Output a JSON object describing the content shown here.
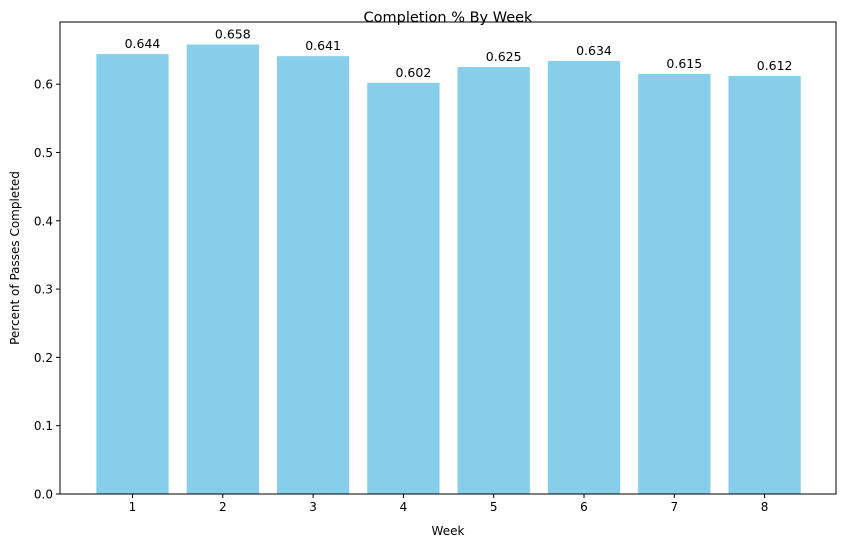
{
  "chart_data": {
    "type": "bar",
    "title": "Completion % By Week",
    "xlabel": "Week",
    "ylabel": "Percent of Passes Completed",
    "categories": [
      "1",
      "2",
      "3",
      "4",
      "5",
      "6",
      "7",
      "8"
    ],
    "values": [
      0.644,
      0.658,
      0.641,
      0.602,
      0.625,
      0.634,
      0.615,
      0.612
    ],
    "value_labels": [
      "0.644",
      "0.658",
      "0.641",
      "0.602",
      "0.625",
      "0.634",
      "0.615",
      "0.612"
    ],
    "ylim": [
      0,
      0.691
    ],
    "yticks": [
      0.0,
      0.1,
      0.2,
      0.3,
      0.4,
      0.5,
      0.6
    ],
    "ytick_labels": [
      "0.0",
      "0.1",
      "0.2",
      "0.3",
      "0.4",
      "0.5",
      "0.6"
    ],
    "grid": false,
    "bar_color": "#87ceeb"
  }
}
